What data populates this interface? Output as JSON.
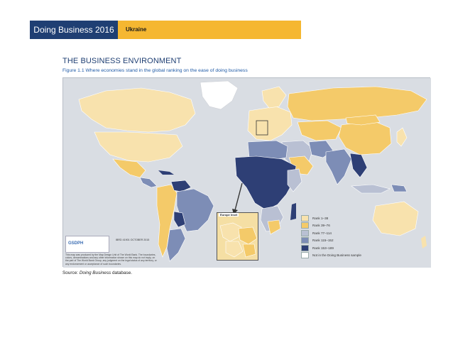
{
  "header": {
    "report_title": "Doing Business 2016",
    "economy": "Ukraine"
  },
  "section_title": "THE BUSINESS ENVIRONMENT",
  "figure_caption": "Figure 1.1 Where economies stand in the global ranking on the ease of doing business",
  "source": {
    "prefix": "Source: ",
    "name": "Doing Business",
    "suffix": " database."
  },
  "map": {
    "inset_label": "Europe Inset",
    "logo_text": "GSDPH",
    "ibrd_code": "IBRD 41901 OCTOBER 2015",
    "disclaimer": "This map was produced by the Map Design Unit of The World Bank. The boundaries, colors, denominations and any other information shown on this map do not imply, on the part of The World Bank Group, any judgment on the legal status of any territory, or any endorsement or acceptance of such boundaries.",
    "legend": [
      {
        "label": "Rank 1–38",
        "color": "#f8e2ad"
      },
      {
        "label": "Rank 39–76",
        "color": "#f4ca69"
      },
      {
        "label": "Rank 77–114",
        "color": "#b9c0d3"
      },
      {
        "label": "Rank 115–152",
        "color": "#7d8db6"
      },
      {
        "label": "Rank 153–189",
        "color": "#2e3f75"
      },
      {
        "label": "Not in the Doing Business sample",
        "color": "#ffffff"
      }
    ]
  }
}
